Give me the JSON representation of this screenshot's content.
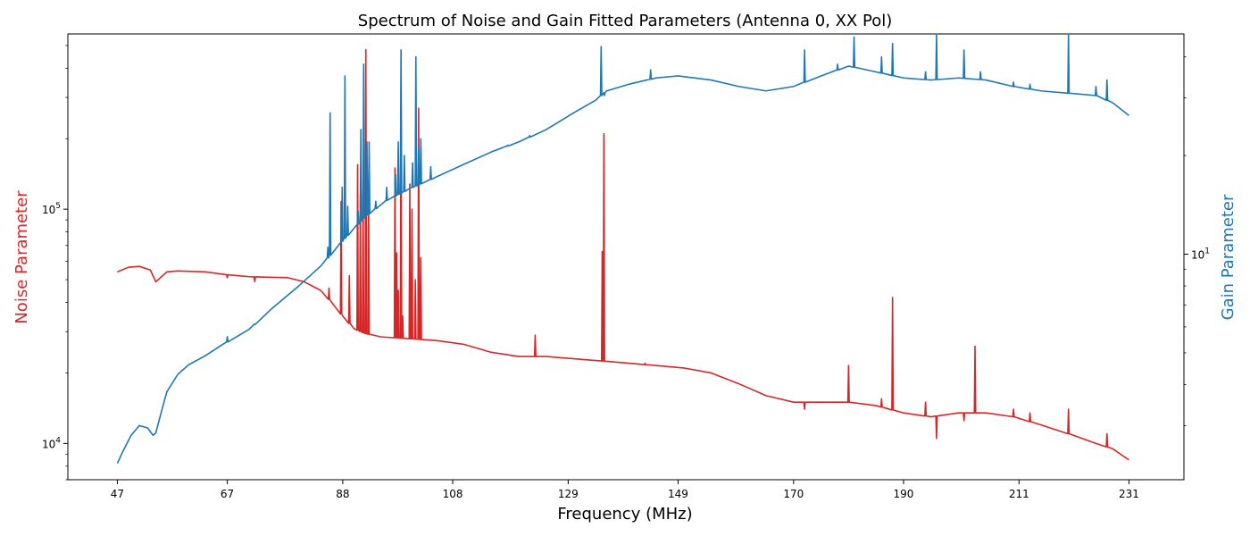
{
  "chart_data": {
    "type": "line",
    "title": "Spectrum of Noise and Gain Fitted Parameters (Antenna 0, XX Pol)",
    "xlabel": "Frequency (MHz)",
    "ylabel_left": "Noise Parameter",
    "ylabel_right": "Gain Parameter",
    "xlim": [
      38,
      241
    ],
    "x_ticks": [
      47,
      67,
      88,
      108,
      129,
      149,
      170,
      190,
      211,
      231
    ],
    "y_left_scale": "log",
    "y_left_lim": [
      7000,
      560000
    ],
    "y_left_ticks": [
      {
        "value": 10000,
        "base": "10",
        "exp": "4"
      },
      {
        "value": 100000,
        "base": "10",
        "exp": "5"
      }
    ],
    "y_right_scale": "log",
    "y_right_lim": [
      2.05,
      47
    ],
    "y_right_ticks": [
      {
        "value": 10,
        "base": "10",
        "exp": "1"
      }
    ],
    "grid": false,
    "series": [
      {
        "axis": "left",
        "color": "#d62728",
        "baseline": [
          [
            47,
            54000
          ],
          [
            49,
            56500
          ],
          [
            51,
            57000
          ],
          [
            53,
            55000
          ],
          [
            54,
            49000
          ],
          [
            56,
            54000
          ],
          [
            58,
            54500
          ],
          [
            63,
            54000
          ],
          [
            67,
            52500
          ],
          [
            71,
            51500
          ],
          [
            78,
            51000
          ],
          [
            81,
            49000
          ],
          [
            84,
            45000
          ],
          [
            86,
            40000
          ],
          [
            88,
            35000
          ],
          [
            90,
            31000
          ],
          [
            92,
            29500
          ],
          [
            95,
            28500
          ],
          [
            100,
            28000
          ],
          [
            105,
            27500
          ],
          [
            110,
            26500
          ],
          [
            115,
            24500
          ],
          [
            120,
            23500
          ],
          [
            125,
            23500
          ],
          [
            130,
            23000
          ],
          [
            135,
            22500
          ],
          [
            140,
            22000
          ],
          [
            145,
            21500
          ],
          [
            150,
            21000
          ],
          [
            155,
            20000
          ],
          [
            160,
            18000
          ],
          [
            165,
            16000
          ],
          [
            170,
            15000
          ],
          [
            175,
            15000
          ],
          [
            180,
            15000
          ],
          [
            185,
            14500
          ],
          [
            190,
            13500
          ],
          [
            195,
            13000
          ],
          [
            200,
            13500
          ],
          [
            205,
            13500
          ],
          [
            210,
            13000
          ],
          [
            215,
            12000
          ],
          [
            220,
            11000
          ],
          [
            225,
            10000
          ],
          [
            228,
            9500
          ],
          [
            231,
            8500
          ]
        ],
        "spikes": [
          [
            67,
            51000
          ],
          [
            72,
            49000
          ],
          [
            85.5,
            46000
          ],
          [
            87.7,
            108000
          ],
          [
            89.2,
            52000
          ],
          [
            90.7,
            155000
          ],
          [
            91.2,
            115000
          ],
          [
            91.7,
            118000
          ],
          [
            92.2,
            480000
          ],
          [
            92.7,
            112000
          ],
          [
            97.5,
            150000
          ],
          [
            97.8,
            65000
          ],
          [
            98.1,
            45000
          ],
          [
            98.6,
            330000
          ],
          [
            98.9,
            35000
          ],
          [
            100.2,
            128000
          ],
          [
            100.6,
            100000
          ],
          [
            101.2,
            50000
          ],
          [
            101.8,
            270000
          ],
          [
            102.2,
            62000
          ],
          [
            123,
            29000
          ],
          [
            135.2,
            66000
          ],
          [
            135.5,
            210000
          ],
          [
            143,
            22000
          ],
          [
            172,
            14000
          ],
          [
            180,
            21500
          ],
          [
            186,
            15500
          ],
          [
            188,
            42000
          ],
          [
            194,
            15000
          ],
          [
            196,
            10500
          ],
          [
            201,
            12500
          ],
          [
            203,
            26000
          ],
          [
            210,
            14000
          ],
          [
            213,
            13500
          ],
          [
            220,
            14000
          ],
          [
            227,
            11000
          ]
        ]
      },
      {
        "axis": "right",
        "color": "#1f77b4",
        "baseline": [
          [
            47,
            2.3
          ],
          [
            48,
            2.5
          ],
          [
            49.5,
            2.8
          ],
          [
            51,
            3.0
          ],
          [
            52.5,
            2.95
          ],
          [
            53.5,
            2.8
          ],
          [
            54,
            2.85
          ],
          [
            55,
            3.3
          ],
          [
            56,
            3.8
          ],
          [
            58,
            4.3
          ],
          [
            60,
            4.6
          ],
          [
            63,
            4.9
          ],
          [
            67,
            5.4
          ],
          [
            71,
            5.9
          ],
          [
            75,
            6.8
          ],
          [
            80,
            8.0
          ],
          [
            84,
            9.2
          ],
          [
            88,
            11.0
          ],
          [
            92,
            13.0
          ],
          [
            96,
            14.6
          ],
          [
            100,
            15.8
          ],
          [
            105,
            17.2
          ],
          [
            110,
            18.8
          ],
          [
            115,
            20.5
          ],
          [
            120,
            22.0
          ],
          [
            125,
            24.0
          ],
          [
            130,
            27.0
          ],
          [
            134,
            29.5
          ],
          [
            136,
            31.5
          ],
          [
            140,
            33.0
          ],
          [
            145,
            34.5
          ],
          [
            149,
            35.0
          ],
          [
            155,
            34.0
          ],
          [
            160,
            32.5
          ],
          [
            165,
            31.5
          ],
          [
            170,
            32.5
          ],
          [
            175,
            35.0
          ],
          [
            180,
            37.5
          ],
          [
            185,
            36.0
          ],
          [
            190,
            34.5
          ],
          [
            195,
            34.0
          ],
          [
            200,
            34.5
          ],
          [
            205,
            34.0
          ],
          [
            210,
            32.5
          ],
          [
            215,
            31.5
          ],
          [
            220,
            31.0
          ],
          [
            225,
            30.5
          ],
          [
            228,
            29.0
          ],
          [
            231,
            26.5
          ]
        ],
        "spikes": [
          [
            67,
            5.6
          ],
          [
            72,
            6.1
          ],
          [
            85.3,
            10.5
          ],
          [
            85.7,
            27.0
          ],
          [
            87.9,
            16.0
          ],
          [
            88.4,
            35.0
          ],
          [
            88.9,
            14.0
          ],
          [
            90.8,
            13.5
          ],
          [
            91.3,
            24.0
          ],
          [
            91.8,
            38.0
          ],
          [
            92.4,
            22.0
          ],
          [
            92.8,
            22.0
          ],
          [
            94,
            14.5
          ],
          [
            96,
            16.0
          ],
          [
            97.6,
            17.5
          ],
          [
            98.1,
            22.0
          ],
          [
            98.6,
            42.0
          ],
          [
            99.2,
            20.0
          ],
          [
            100.7,
            19.0
          ],
          [
            101.3,
            40.0
          ],
          [
            101.8,
            21.0
          ],
          [
            102.2,
            22.5
          ],
          [
            104,
            18.5
          ],
          [
            118,
            21.5
          ],
          [
            122,
            23.0
          ],
          [
            135.0,
            43.0
          ],
          [
            135.6,
            30.5
          ],
          [
            144,
            36.5
          ],
          [
            172,
            42.0
          ],
          [
            178,
            38.0
          ],
          [
            181,
            46.0
          ],
          [
            186,
            40.0
          ],
          [
            188,
            44.0
          ],
          [
            194,
            36.0
          ],
          [
            196,
            47.0
          ],
          [
            201,
            42.0
          ],
          [
            204,
            36.0
          ],
          [
            210,
            33.5
          ],
          [
            213,
            33.0
          ],
          [
            220,
            47.0
          ],
          [
            225,
            32.5
          ],
          [
            227,
            34.0
          ]
        ]
      }
    ]
  }
}
